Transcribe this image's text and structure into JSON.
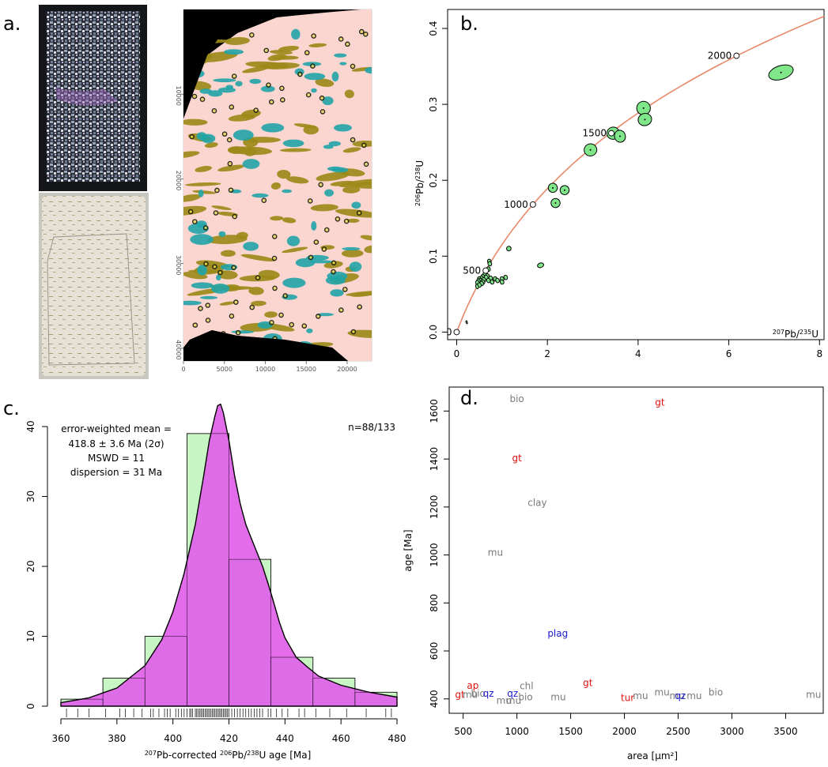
{
  "panels": {
    "a": {
      "label": "a."
    },
    "b": {
      "label": "b."
    },
    "c": {
      "label": "c."
    },
    "d": {
      "label": "d."
    }
  },
  "colors": {
    "concordia": "#e8896b",
    "ellipse_fill": "#7fe68a",
    "hist_fill": "#c8f5c4",
    "kde_fill": "#e060e8",
    "map_pink": "#fbd5cf",
    "map_cyan": "#21a4a8",
    "map_olive": "#9b8a1a",
    "label_red": "#e01010",
    "label_blue": "#1a1ad0",
    "label_grey": "#7a7a7a"
  },
  "chart_data": [
    {
      "type": "map",
      "panel": "a",
      "x_ticks": [
        "0",
        "5000",
        "10000",
        "15000",
        "20000"
      ],
      "y_ticks": [
        "10000",
        "20000",
        "30000",
        "40000"
      ],
      "xlim": [
        0,
        23000
      ],
      "ylim": [
        0,
        41500
      ]
    },
    {
      "type": "scatter",
      "panel": "b",
      "xlabel": "207Pb/235U",
      "ylabel": "206Pb/238U",
      "xlim": [
        -0.2,
        8.1
      ],
      "ylim": [
        -0.01,
        0.425
      ],
      "x_ticks": [
        "0",
        "2",
        "4",
        "6",
        "8"
      ],
      "y_ticks": [
        "0.0",
        "0.1",
        "0.2",
        "0.3",
        "0.4"
      ],
      "concordia_ages": [
        {
          "age": "0",
          "x": 0,
          "y": 0
        },
        {
          "age": "500",
          "x": 0.64,
          "y": 0.081
        },
        {
          "age": "1000",
          "x": 1.68,
          "y": 0.168
        },
        {
          "age": "1500",
          "x": 3.41,
          "y": 0.262
        },
        {
          "age": "2000",
          "x": 6.17,
          "y": 0.364
        }
      ],
      "ellipses": [
        {
          "x": 7.15,
          "y": 0.342,
          "rx": 0.28,
          "ry": 0.009
        },
        {
          "x": 4.12,
          "y": 0.295,
          "rx": 0.15,
          "ry": 0.009
        },
        {
          "x": 4.15,
          "y": 0.28,
          "rx": 0.15,
          "ry": 0.008
        },
        {
          "x": 3.45,
          "y": 0.262,
          "rx": 0.14,
          "ry": 0.008
        },
        {
          "x": 3.6,
          "y": 0.258,
          "rx": 0.12,
          "ry": 0.008
        },
        {
          "x": 2.95,
          "y": 0.24,
          "rx": 0.14,
          "ry": 0.008
        },
        {
          "x": 2.12,
          "y": 0.19,
          "rx": 0.1,
          "ry": 0.006
        },
        {
          "x": 2.38,
          "y": 0.187,
          "rx": 0.1,
          "ry": 0.006
        },
        {
          "x": 2.18,
          "y": 0.17,
          "rx": 0.1,
          "ry": 0.006
        },
        {
          "x": 1.15,
          "y": 0.11,
          "rx": 0.05,
          "ry": 0.003
        },
        {
          "x": 1.85,
          "y": 0.088,
          "rx": 0.07,
          "ry": 0.003
        },
        {
          "x": 0.72,
          "y": 0.093,
          "rx": 0.04,
          "ry": 0.003
        },
        {
          "x": 0.73,
          "y": 0.09,
          "rx": 0.04,
          "ry": 0.003
        },
        {
          "x": 0.7,
          "y": 0.083,
          "rx": 0.04,
          "ry": 0.003
        },
        {
          "x": 0.62,
          "y": 0.076,
          "rx": 0.04,
          "ry": 0.003
        },
        {
          "x": 0.68,
          "y": 0.074,
          "rx": 0.04,
          "ry": 0.003
        },
        {
          "x": 0.58,
          "y": 0.073,
          "rx": 0.04,
          "ry": 0.003
        },
        {
          "x": 0.65,
          "y": 0.072,
          "rx": 0.04,
          "ry": 0.003
        },
        {
          "x": 0.55,
          "y": 0.071,
          "rx": 0.04,
          "ry": 0.003
        },
        {
          "x": 0.75,
          "y": 0.071,
          "rx": 0.04,
          "ry": 0.003
        },
        {
          "x": 0.5,
          "y": 0.07,
          "rx": 0.04,
          "ry": 0.003
        },
        {
          "x": 0.85,
          "y": 0.07,
          "rx": 0.04,
          "ry": 0.003
        },
        {
          "x": 0.6,
          "y": 0.069,
          "rx": 0.04,
          "ry": 0.003
        },
        {
          "x": 1.0,
          "y": 0.07,
          "rx": 0.04,
          "ry": 0.003
        },
        {
          "x": 0.52,
          "y": 0.068,
          "rx": 0.04,
          "ry": 0.003
        },
        {
          "x": 0.7,
          "y": 0.068,
          "rx": 0.04,
          "ry": 0.003
        },
        {
          "x": 1.08,
          "y": 0.072,
          "rx": 0.04,
          "ry": 0.003
        },
        {
          "x": 0.48,
          "y": 0.067,
          "rx": 0.04,
          "ry": 0.003
        },
        {
          "x": 0.58,
          "y": 0.066,
          "rx": 0.04,
          "ry": 0.003
        },
        {
          "x": 0.9,
          "y": 0.068,
          "rx": 0.04,
          "ry": 0.003
        },
        {
          "x": 0.46,
          "y": 0.065,
          "rx": 0.04,
          "ry": 0.003
        },
        {
          "x": 0.55,
          "y": 0.064,
          "rx": 0.04,
          "ry": 0.003
        },
        {
          "x": 0.5,
          "y": 0.062,
          "rx": 0.04,
          "ry": 0.003
        },
        {
          "x": 0.78,
          "y": 0.066,
          "rx": 0.04,
          "ry": 0.003
        },
        {
          "x": 0.45,
          "y": 0.06,
          "rx": 0.03,
          "ry": 0.003
        },
        {
          "x": 1.0,
          "y": 0.066,
          "rx": 0.04,
          "ry": 0.003
        },
        {
          "x": 0.22,
          "y": 0.013,
          "rx": 0.015,
          "ry": 0.002
        }
      ],
      "corner_label": "207Pb/235U"
    },
    {
      "type": "bar",
      "panel": "c",
      "xlabel": "207Pb-corrected 206Pb/238U age [Ma]",
      "xlim": [
        360,
        480
      ],
      "ylim": [
        0,
        40
      ],
      "x_ticks": [
        "360",
        "380",
        "400",
        "420",
        "440",
        "460",
        "480"
      ],
      "y_ticks": [
        "0",
        "10",
        "20",
        "30",
        "40"
      ],
      "bins": [
        {
          "lo": 360,
          "hi": 375,
          "count": 1
        },
        {
          "lo": 375,
          "hi": 390,
          "count": 4
        },
        {
          "lo": 390,
          "hi": 405,
          "count": 10
        },
        {
          "lo": 405,
          "hi": 420,
          "count": 39
        },
        {
          "lo": 420,
          "hi": 435,
          "count": 21
        },
        {
          "lo": 435,
          "hi": 450,
          "count": 7
        },
        {
          "lo": 450,
          "hi": 465,
          "count": 4
        },
        {
          "lo": 465,
          "hi": 480,
          "count": 2
        }
      ],
      "kde": [
        [
          360,
          0.5
        ],
        [
          370,
          1.2
        ],
        [
          380,
          2.6
        ],
        [
          390,
          5.8
        ],
        [
          396,
          9.5
        ],
        [
          400,
          13.5
        ],
        [
          404,
          19
        ],
        [
          408,
          26
        ],
        [
          411,
          33
        ],
        [
          413,
          38
        ],
        [
          415,
          41.5
        ],
        [
          416,
          43
        ],
        [
          417,
          43.2
        ],
        [
          418,
          42
        ],
        [
          420,
          38
        ],
        [
          422,
          33
        ],
        [
          424,
          29
        ],
        [
          426,
          26
        ],
        [
          428,
          24
        ],
        [
          430,
          22
        ],
        [
          432,
          20
        ],
        [
          434,
          17.5
        ],
        [
          436,
          14.8
        ],
        [
          438,
          12
        ],
        [
          440,
          9.8
        ],
        [
          444,
          7
        ],
        [
          448,
          5.6
        ],
        [
          452,
          4.3
        ],
        [
          460,
          3
        ],
        [
          470,
          2
        ],
        [
          480,
          1.3
        ]
      ],
      "rug": [
        362,
        366,
        370,
        376,
        381,
        383,
        386,
        389,
        392,
        393,
        395,
        397,
        398,
        399,
        401,
        402,
        403,
        404,
        405,
        406,
        406.5,
        407,
        408,
        408.5,
        409,
        409.5,
        410,
        410.5,
        411,
        411.5,
        412,
        412.5,
        413,
        413.5,
        414,
        414.5,
        415,
        415.5,
        416,
        416.5,
        417,
        417.5,
        418,
        418.5,
        419,
        419.5,
        420,
        421,
        422,
        423,
        424,
        425,
        426,
        427,
        428,
        429,
        430,
        431,
        432,
        434,
        435,
        437,
        439,
        441,
        445,
        447,
        451,
        456,
        462,
        469,
        476,
        478
      ],
      "annotation_lines": [
        "error-weighted mean =",
        "418.8 ± 3.6 Ma (2σ)",
        "MSWD = 11",
        "dispersion = 31 Ma"
      ],
      "count_label": "n=88/133"
    },
    {
      "type": "scatter",
      "panel": "d",
      "xlabel": "area [μm²]",
      "ylabel": "age [Ma]",
      "xlim": [
        370,
        3850
      ],
      "ylim": [
        340,
        1700
      ],
      "x_ticks": [
        "500",
        "1000",
        "1500",
        "2000",
        "2500",
        "3000",
        "3500"
      ],
      "y_ticks": [
        "400",
        "600",
        "800",
        "1000",
        "1200",
        "1400",
        "1600"
      ],
      "points": [
        {
          "t": "bio",
          "x": 1000,
          "y": 1650,
          "c": "grey"
        },
        {
          "t": "gt",
          "x": 2330,
          "y": 1635,
          "c": "red"
        },
        {
          "t": "gt",
          "x": 1000,
          "y": 1403,
          "c": "red"
        },
        {
          "t": "clay",
          "x": 1190,
          "y": 1218,
          "c": "grey"
        },
        {
          "t": "mu",
          "x": 800,
          "y": 1010,
          "c": "grey"
        },
        {
          "t": "plag",
          "x": 1380,
          "y": 672,
          "c": "blue"
        },
        {
          "t": "gt",
          "x": 1660,
          "y": 466,
          "c": "red"
        },
        {
          "t": "ap",
          "x": 590,
          "y": 455,
          "c": "red"
        },
        {
          "t": "chl",
          "x": 1090,
          "y": 453,
          "c": "grey"
        },
        {
          "t": "gt",
          "x": 470,
          "y": 418,
          "c": "red"
        },
        {
          "t": "mu",
          "x": 565,
          "y": 418,
          "c": "grey"
        },
        {
          "t": "bio",
          "x": 640,
          "y": 423,
          "c": "grey"
        },
        {
          "t": "qz",
          "x": 735,
          "y": 423,
          "c": "blue"
        },
        {
          "t": "qz",
          "x": 960,
          "y": 423,
          "c": "blue"
        },
        {
          "t": "mu",
          "x": 880,
          "y": 393,
          "c": "grey"
        },
        {
          "t": "mu",
          "x": 970,
          "y": 393,
          "c": "grey"
        },
        {
          "t": "bio",
          "x": 1080,
          "y": 408,
          "c": "grey"
        },
        {
          "t": "mu",
          "x": 1385,
          "y": 408,
          "c": "grey"
        },
        {
          "t": "tur",
          "x": 2030,
          "y": 405,
          "c": "red"
        },
        {
          "t": "mu",
          "x": 2150,
          "y": 413,
          "c": "grey"
        },
        {
          "t": "mu",
          "x": 2350,
          "y": 428,
          "c": "grey"
        },
        {
          "t": "mu",
          "x": 2490,
          "y": 413,
          "c": "grey"
        },
        {
          "t": "mu",
          "x": 2650,
          "y": 413,
          "c": "grey"
        },
        {
          "t": "qz",
          "x": 2520,
          "y": 413,
          "c": "blue"
        },
        {
          "t": "bio",
          "x": 2850,
          "y": 428,
          "c": "grey"
        },
        {
          "t": "mu",
          "x": 3760,
          "y": 418,
          "c": "grey"
        }
      ]
    }
  ]
}
